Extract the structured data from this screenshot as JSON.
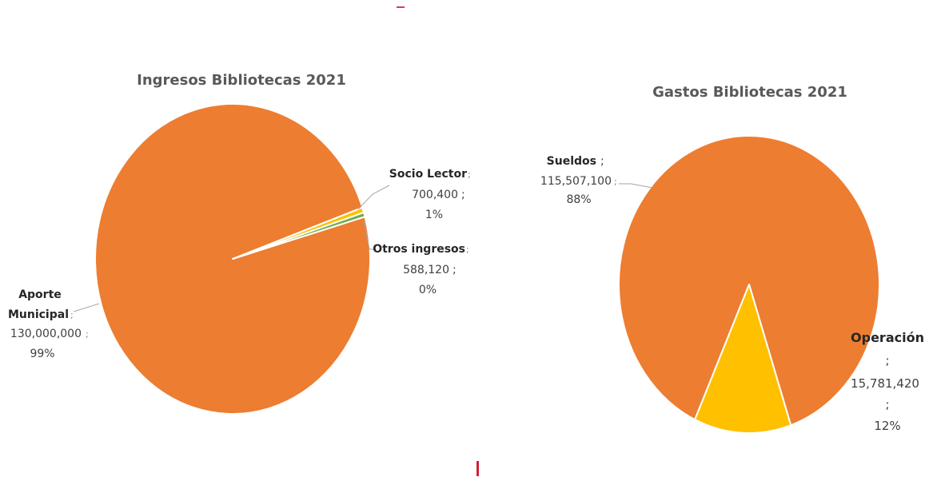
{
  "chart_data": [
    {
      "type": "pie",
      "title": "Ingresos Bibliotecas 2021",
      "slices": [
        {
          "label": "Aporte Municipal",
          "value": 130000000,
          "value_text": "130,000,000",
          "percent_text": "99%",
          "color": "#ED7D31"
        },
        {
          "label": "Socio Lector",
          "value": 700400,
          "value_text": "700,400",
          "percent_text": "1%",
          "color": "#FFC000"
        },
        {
          "label": "Otros ingresos",
          "value": 588120,
          "value_text": "588,120",
          "percent_text": "0%",
          "color": "#70AD47"
        }
      ]
    },
    {
      "type": "pie",
      "title": "Gastos Bibliotecas 2021",
      "slices": [
        {
          "label": "Sueldos",
          "value": 115507100,
          "value_text": "115,507,100",
          "percent_text": "88%",
          "color": "#ED7D31"
        },
        {
          "label": "Operación",
          "value": 15781420,
          "value_text": "15,781,420",
          "percent_text": "12%",
          "color": "#FFC000"
        }
      ]
    }
  ],
  "separator": ";"
}
